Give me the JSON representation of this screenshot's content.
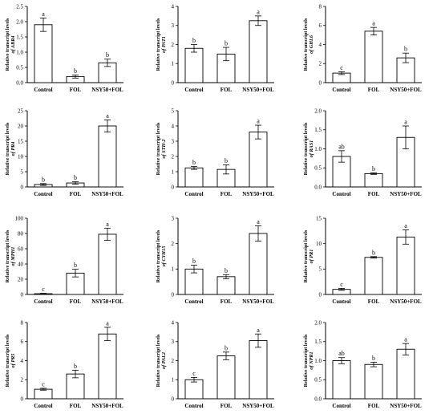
{
  "figure": {
    "ylabel_prefix": "Relative transcript levels",
    "categories": [
      "Control",
      "FOL",
      "NSY50+FOL"
    ]
  },
  "chart_data": [
    {
      "type": "bar",
      "gene": "ABR4",
      "ylabel_gene": "of ABR4",
      "categories": [
        "Control",
        "FOL",
        "NSY50+FOL"
      ],
      "values": [
        1.9,
        0.2,
        0.65
      ],
      "errors": [
        0.22,
        0.05,
        0.12
      ],
      "letters": [
        "a",
        "b",
        "b"
      ],
      "ylim": [
        0,
        2.5
      ],
      "yticks": [
        "0.0",
        "0.5",
        "1.0",
        "1.5",
        "2.0",
        "2.5"
      ]
    },
    {
      "type": "bar",
      "gene": "PAT1",
      "ylabel_gene": "of PAT1",
      "categories": [
        "Control",
        "FOL",
        "NSY50+FOL"
      ],
      "values": [
        1.8,
        1.5,
        3.25
      ],
      "errors": [
        0.2,
        0.35,
        0.25
      ],
      "letters": [
        "b",
        "b",
        "a"
      ],
      "ylim": [
        0,
        4
      ],
      "yticks": [
        "0",
        "1",
        "2",
        "3",
        "4"
      ]
    },
    {
      "type": "bar",
      "gene": "GHL6",
      "ylabel_gene": "of GHL6",
      "categories": [
        "Control",
        "FOL",
        "NSY50+FOL"
      ],
      "values": [
        1.0,
        5.4,
        2.6
      ],
      "errors": [
        0.15,
        0.4,
        0.5
      ],
      "letters": [
        "c",
        "a",
        "b"
      ],
      "ylim": [
        0,
        8
      ],
      "yticks": [
        "0",
        "2",
        "4",
        "6",
        "8"
      ]
    },
    {
      "type": "bar",
      "gene": "PR4",
      "ylabel_gene": "of PR4",
      "categories": [
        "Control",
        "FOL",
        "NSY50+FOL"
      ],
      "values": [
        0.8,
        1.3,
        20.0
      ],
      "errors": [
        0.3,
        0.4,
        2.0
      ],
      "letters": [
        "b",
        "b",
        "a"
      ],
      "ylim": [
        0,
        25
      ],
      "yticks": [
        "0",
        "5",
        "10",
        "15",
        "20",
        "25"
      ]
    },
    {
      "type": "bar",
      "gene": "STH-2",
      "ylabel_gene": "of STH-2",
      "categories": [
        "Control",
        "FOL",
        "NSY50+FOL"
      ],
      "values": [
        1.25,
        1.15,
        3.6
      ],
      "errors": [
        0.1,
        0.3,
        0.45
      ],
      "letters": [
        "b",
        "b",
        "a"
      ],
      "ylim": [
        0,
        5
      ],
      "yticks": [
        "0",
        "1",
        "2",
        "3",
        "4",
        "5"
      ]
    },
    {
      "type": "bar",
      "gene": "RAS1",
      "ylabel_gene": "of RAS1",
      "categories": [
        "Control",
        "FOL",
        "NSY50+FOL"
      ],
      "values": [
        0.8,
        0.35,
        1.3
      ],
      "errors": [
        0.15,
        0.02,
        0.3
      ],
      "letters": [
        "ab",
        "b",
        "a"
      ],
      "ylim": [
        0,
        2.0
      ],
      "yticks": [
        "0.0",
        "0.5",
        "1.0",
        "1.5",
        "2.0"
      ]
    },
    {
      "type": "bar",
      "gene": "MPH1",
      "ylabel_gene": "of MPH1",
      "categories": [
        "Control",
        "FOL",
        "NSY50+FOL"
      ],
      "values": [
        1,
        28,
        79
      ],
      "errors": [
        0.5,
        5,
        8
      ],
      "letters": [
        "c",
        "b",
        "a"
      ],
      "ylim": [
        0,
        100
      ],
      "yticks": [
        "0",
        "20",
        "40",
        "60",
        "80",
        "100"
      ]
    },
    {
      "type": "bar",
      "gene": "CYH15",
      "ylabel_gene": "of CYH15",
      "categories": [
        "Control",
        "FOL",
        "NSY50+FOL"
      ],
      "values": [
        1.0,
        0.7,
        2.4
      ],
      "errors": [
        0.15,
        0.08,
        0.3
      ],
      "letters": [
        "b",
        "b",
        "a"
      ],
      "ylim": [
        0,
        3
      ],
      "yticks": [
        "0",
        "1",
        "2",
        "3"
      ]
    },
    {
      "type": "bar",
      "gene": "PR1",
      "ylabel_gene": "of PR1",
      "categories": [
        "Control",
        "FOL",
        "NSY50+FOL"
      ],
      "values": [
        1.0,
        7.3,
        11.3
      ],
      "errors": [
        0.2,
        0.15,
        1.4
      ],
      "letters": [
        "c",
        "b",
        "a"
      ],
      "ylim": [
        0,
        15
      ],
      "yticks": [
        "0",
        "5",
        "10",
        "15"
      ]
    },
    {
      "type": "bar",
      "gene": "PR5",
      "ylabel_gene": "of PR5",
      "categories": [
        "Control",
        "FOL",
        "NSY50+FOL"
      ],
      "values": [
        1.0,
        2.6,
        6.8
      ],
      "errors": [
        0.1,
        0.4,
        0.7
      ],
      "letters": [
        "c",
        "b",
        "a"
      ],
      "ylim": [
        0,
        8
      ],
      "yticks": [
        "0",
        "2",
        "4",
        "6",
        "8"
      ]
    },
    {
      "type": "bar",
      "gene": "PAL2",
      "ylabel_gene": "of PAL2",
      "categories": [
        "Control",
        "FOL",
        "NSY50+FOL"
      ],
      "values": [
        1.0,
        2.25,
        3.05
      ],
      "errors": [
        0.12,
        0.2,
        0.35
      ],
      "letters": [
        "c",
        "b",
        "a"
      ],
      "ylim": [
        0,
        4
      ],
      "yticks": [
        "0",
        "1",
        "2",
        "3",
        "4"
      ]
    },
    {
      "type": "bar",
      "gene": "NPR1",
      "ylabel_gene": "of NPR1",
      "categories": [
        "Control",
        "FOL",
        "NSY50+FOL"
      ],
      "values": [
        1.0,
        0.9,
        1.3
      ],
      "errors": [
        0.08,
        0.06,
        0.15
      ],
      "letters": [
        "ab",
        "b",
        "a"
      ],
      "ylim": [
        0,
        2.0
      ],
      "yticks": [
        "0.0",
        "0.5",
        "1.0",
        "1.5",
        "2.0"
      ]
    }
  ]
}
